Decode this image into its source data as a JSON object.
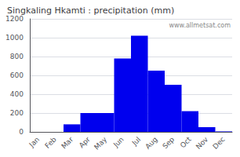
{
  "chart_data": {
    "type": "bar",
    "title": "Singkaling Hkamti : precipitation (mm)",
    "categories": [
      "Jan",
      "Feb",
      "Mar",
      "Apr",
      "May",
      "Jun",
      "Jul",
      "Aug",
      "Sep",
      "Oct",
      "Nov",
      "Dec"
    ],
    "values": [
      0,
      0,
      80,
      200,
      200,
      780,
      1020,
      650,
      500,
      220,
      50,
      5
    ],
    "color": "#0000EE",
    "ylim": [
      0,
      1200
    ],
    "yticks": [
      0,
      200,
      400,
      600,
      800,
      1000,
      1200
    ],
    "grid": true,
    "annotations": [
      "www.allmetsat.com"
    ]
  }
}
